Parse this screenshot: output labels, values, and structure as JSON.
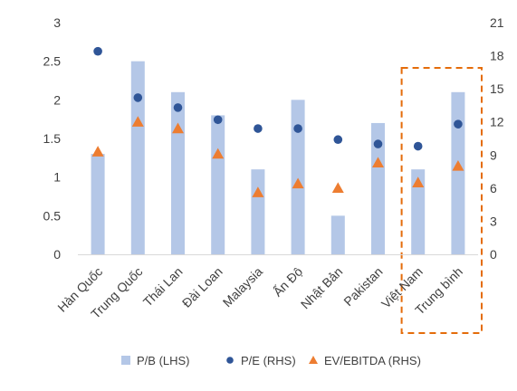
{
  "chart_data": {
    "type": "bar",
    "title": "",
    "categories": [
      "Hàn Quốc",
      "Trung Quốc",
      "Thái Lan",
      "Đài Loan",
      "Malaysia",
      "Ấn Độ",
      "Nhật Bản",
      "Pakistan",
      "Việt Nam",
      "Trung bình"
    ],
    "series": [
      {
        "name": "P/B (LHS)",
        "type": "bar",
        "axis": "left",
        "color": "#b4c7e7",
        "values": [
          1.3,
          2.5,
          2.1,
          1.8,
          1.1,
          2.0,
          0.5,
          1.7,
          1.1,
          2.1
        ]
      },
      {
        "name": "P/E (RHS)",
        "type": "scatter",
        "marker": "circle",
        "axis": "right",
        "color": "#2f5597",
        "values": [
          18.4,
          14.2,
          13.3,
          12.2,
          11.4,
          11.4,
          10.4,
          10.0,
          9.8,
          11.8
        ]
      },
      {
        "name": "EV/EBITDA (RHS)",
        "type": "scatter",
        "marker": "triangle",
        "axis": "right",
        "color": "#ed7d31",
        "values": [
          9.3,
          12.0,
          11.4,
          9.1,
          5.6,
          6.4,
          6.0,
          8.3,
          6.5,
          8.0
        ]
      }
    ],
    "y_left": {
      "ylim": [
        0,
        3
      ],
      "ticks": [
        "0",
        "0.5",
        "1",
        "1.5",
        "2",
        "2.5",
        "3"
      ]
    },
    "y_right": {
      "ylim": [
        0,
        21
      ],
      "ticks": [
        "0",
        "3",
        "6",
        "9",
        "12",
        "15",
        "18",
        "21"
      ]
    },
    "highlight": {
      "categories": [
        "Việt Nam",
        "Trung bình"
      ],
      "style": "dashed-box",
      "color": "#e46c0a"
    },
    "legend": {
      "position": "bottom"
    },
    "grid": false
  }
}
